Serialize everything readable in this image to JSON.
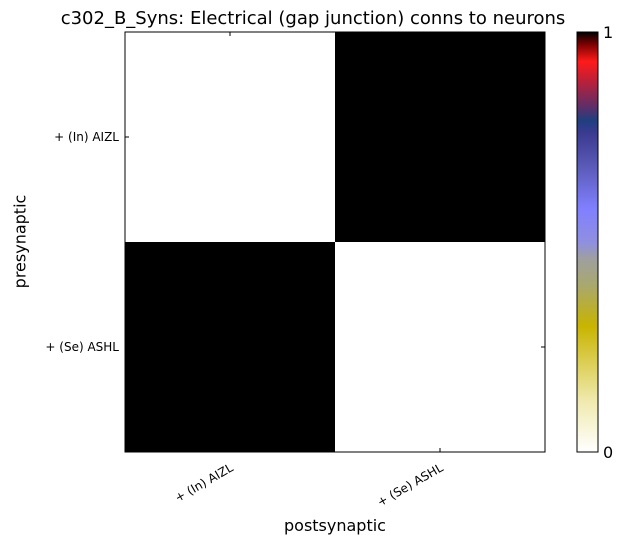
{
  "chart_data": {
    "type": "heatmap",
    "title": "c302_B_Syns: Electrical (gap junction) conns to neurons",
    "xlabel": "postsynaptic",
    "ylabel": "presynaptic",
    "x_categories": [
      "+ (In) AIZL",
      "+ (Se) ASHL"
    ],
    "y_categories": [
      "+ (In) AIZL",
      "+ (Se) ASHL"
    ],
    "matrix": [
      [
        0,
        1
      ],
      [
        1,
        0
      ]
    ],
    "colorbar": {
      "min": 0,
      "max": 1,
      "tick_labels": [
        "0",
        "1"
      ],
      "colors": [
        "#ffffff",
        "#c8b400",
        "#9f9f9f",
        "#8080ff",
        "#4848a8",
        "#1f3f7f",
        "#b5213c",
        "#ff1a1a",
        "#000000"
      ]
    },
    "grid": false
  }
}
